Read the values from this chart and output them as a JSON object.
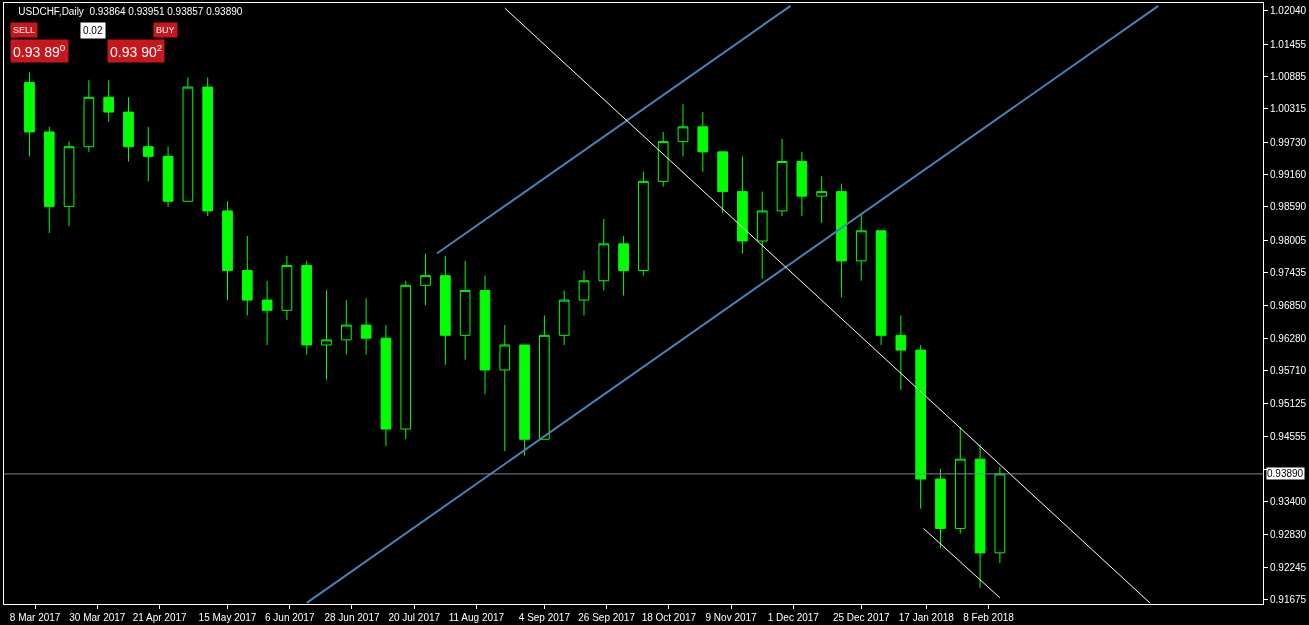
{
  "chart_data": {
    "type": "candlestick",
    "title": "USDCHF,Daily  0.93864 0.93951 0.93857 0.93890",
    "x": [
      "2017-03-06",
      "2017-03-13",
      "2017-03-20",
      "2017-03-27",
      "2017-04-03",
      "2017-04-10",
      "2017-04-17",
      "2017-04-24",
      "2017-05-01",
      "2017-05-08",
      "2017-05-15",
      "2017-05-22",
      "2017-05-29",
      "2017-06-05",
      "2017-06-12",
      "2017-06-19",
      "2017-06-26",
      "2017-07-03",
      "2017-07-10",
      "2017-07-17",
      "2017-07-24",
      "2017-07-31",
      "2017-08-07",
      "2017-08-14",
      "2017-08-21",
      "2017-08-28",
      "2017-09-04",
      "2017-09-11",
      "2017-09-18",
      "2017-09-25",
      "2017-10-02",
      "2017-10-09",
      "2017-10-16",
      "2017-10-23",
      "2017-10-30",
      "2017-11-06",
      "2017-11-13",
      "2017-11-20",
      "2017-11-27",
      "2017-12-04",
      "2017-12-11",
      "2017-12-18",
      "2017-12-25",
      "2018-01-01",
      "2018-01-08",
      "2018-01-15",
      "2018-01-22",
      "2018-01-29",
      "2018-02-05",
      "2018-02-12"
    ],
    "ohlc": [
      [
        1.0078,
        1.0096,
        0.9948,
        0.9991
      ],
      [
        0.9991,
        1.0,
        0.9813,
        0.986
      ],
      [
        0.986,
        0.9974,
        0.9825,
        0.9965
      ],
      [
        0.9965,
        1.0082,
        0.9956,
        1.0052
      ],
      [
        1.0052,
        1.0082,
        1.0009,
        1.0026
      ],
      [
        1.0026,
        1.0052,
        0.9939,
        0.9965
      ],
      [
        0.9965,
        1.0,
        0.9904,
        0.9948
      ],
      [
        0.9948,
        0.9965,
        0.9859,
        0.9869
      ],
      [
        0.9869,
        1.0087,
        0.9869,
        1.007
      ],
      [
        1.007,
        1.0087,
        0.9843,
        0.9852
      ],
      [
        0.9852,
        0.9869,
        0.9695,
        0.9747
      ],
      [
        0.9747,
        0.9808,
        0.9668,
        0.9695
      ],
      [
        0.9695,
        0.9729,
        0.9616,
        0.9677
      ],
      [
        0.9677,
        0.9773,
        0.966,
        0.9756
      ],
      [
        0.9756,
        0.9764,
        0.9599,
        0.9616
      ],
      [
        0.9616,
        0.9712,
        0.9555,
        0.9625
      ],
      [
        0.9625,
        0.9695,
        0.9599,
        0.9651
      ],
      [
        0.9651,
        0.9698,
        0.9599,
        0.9628
      ],
      [
        0.9628,
        0.9651,
        0.9438,
        0.9468
      ],
      [
        0.9468,
        0.9729,
        0.945,
        0.9721
      ],
      [
        0.9721,
        0.9777,
        0.9686,
        0.9738
      ],
      [
        0.9738,
        0.9773,
        0.9581,
        0.9633
      ],
      [
        0.9633,
        0.9764,
        0.959,
        0.9712
      ],
      [
        0.9712,
        0.9738,
        0.9529,
        0.9572
      ],
      [
        0.9572,
        0.9651,
        0.9429,
        0.9616
      ],
      [
        0.9616,
        0.9616,
        0.9421,
        0.945
      ],
      [
        0.945,
        0.9668,
        0.945,
        0.9633
      ],
      [
        0.9633,
        0.9712,
        0.9616,
        0.9695
      ],
      [
        0.9695,
        0.9747,
        0.9668,
        0.9729
      ],
      [
        0.9729,
        0.9838,
        0.9712,
        0.9794
      ],
      [
        0.9794,
        0.9808,
        0.9703,
        0.9747
      ],
      [
        0.9747,
        0.9921,
        0.9738,
        0.9904
      ],
      [
        0.9904,
        0.9991,
        0.9895,
        0.9974
      ],
      [
        0.9974,
        1.004,
        0.9948,
        1.0
      ],
      [
        1.0,
        1.0026,
        0.9921,
        0.9956
      ],
      [
        0.9956,
        0.9956,
        0.9848,
        0.9886
      ],
      [
        0.9886,
        0.9948,
        0.9777,
        0.9799
      ],
      [
        0.9799,
        0.9886,
        0.9733,
        0.9852
      ],
      [
        0.9852,
        0.9979,
        0.9843,
        0.9939
      ],
      [
        0.9939,
        0.9956,
        0.9843,
        0.9878
      ],
      [
        0.9878,
        0.9913,
        0.9831,
        0.9886
      ],
      [
        0.9886,
        0.99,
        0.97,
        0.9764
      ],
      [
        0.9764,
        0.9846,
        0.9729,
        0.9817
      ],
      [
        0.9817,
        0.9817,
        0.9616,
        0.9633
      ],
      [
        0.9633,
        0.9668,
        0.9537,
        0.9607
      ],
      [
        0.9607,
        0.9616,
        0.9328,
        0.938
      ],
      [
        0.938,
        0.9398,
        0.9258,
        0.9293
      ],
      [
        0.9293,
        0.9471,
        0.9284,
        0.9415
      ],
      [
        0.9415,
        0.9441,
        0.9188,
        0.925
      ],
      [
        0.925,
        0.9401,
        0.9232,
        0.9389
      ]
    ],
    "color": "#00ff00",
    "series": [
      {
        "type": "line",
        "color": "#4682b4",
        "x": [
          "2017-07-28",
          "2017-11-30"
        ],
        "values": [
          0.9777,
          1.0213
        ]
      },
      {
        "type": "line",
        "color": "#4682b4",
        "x": [
          "2017-06-12",
          "2018-04-09"
        ],
        "values": [
          0.9162,
          1.0213
        ]
      },
      {
        "type": "line",
        "color": "#ffffff",
        "x": [
          "2017-08-21",
          "2018-04-06"
        ],
        "values": [
          1.0209,
          0.9162
        ]
      },
      {
        "type": "line",
        "color": "#ffffff",
        "x": [
          "2018-01-16",
          "2018-02-12"
        ],
        "values": [
          0.9293,
          0.9171
        ]
      }
    ],
    "ref_lines": [
      {
        "axis": "y",
        "value": 0.9389,
        "label": "0.93890",
        "color": "#778899"
      }
    ],
    "xlim": [
      "2017-02-25",
      "2018-05-16"
    ],
    "xticks": [
      {
        "value": "2017-03-08",
        "label": "8 Mar 2017"
      },
      {
        "value": "2017-03-30",
        "label": "30 Mar 2017"
      },
      {
        "value": "2017-04-21",
        "label": "21 Apr 2017"
      },
      {
        "value": "2017-05-15",
        "label": "15 May 2017"
      },
      {
        "value": "2017-06-06",
        "label": "6 Jun 2017"
      },
      {
        "value": "2017-06-28",
        "label": "28 Jun 2017"
      },
      {
        "value": "2017-07-20",
        "label": "20 Jul 2017"
      },
      {
        "value": "2017-08-11",
        "label": "11 Aug 2017"
      },
      {
        "value": "2017-09-04",
        "label": "4 Sep 2017"
      },
      {
        "value": "2017-09-26",
        "label": "26 Sep 2017"
      },
      {
        "value": "2017-10-18",
        "label": "18 Oct 2017"
      },
      {
        "value": "2017-11-09",
        "label": "9 Nov 2017"
      },
      {
        "value": "2017-12-01",
        "label": "1 Dec 2017"
      },
      {
        "value": "2017-12-25",
        "label": "25 Dec 2017"
      },
      {
        "value": "2018-01-17",
        "label": "17 Jan 2018"
      },
      {
        "value": "2018-02-08",
        "label": "8 Feb 2018"
      }
    ],
    "ylim": [
      0.916,
      1.0218
    ],
    "yticks": [
      {
        "value": 1.0204,
        "label": "1.02040"
      },
      {
        "value": 1.01455,
        "label": "1.01455"
      },
      {
        "value": 1.00885,
        "label": "1.00885"
      },
      {
        "value": 1.00315,
        "label": "1.00315"
      },
      {
        "value": 0.9973,
        "label": "0.99730"
      },
      {
        "value": 0.9916,
        "label": "0.99160"
      },
      {
        "value": 0.9859,
        "label": "0.98590"
      },
      {
        "value": 0.98005,
        "label": "0.98005"
      },
      {
        "value": 0.97435,
        "label": "0.97435"
      },
      {
        "value": 0.9685,
        "label": "0.96850"
      },
      {
        "value": 0.9628,
        "label": "0.96280"
      },
      {
        "value": 0.9571,
        "label": "0.95710"
      },
      {
        "value": 0.95125,
        "label": "0.95125"
      },
      {
        "value": 0.94555,
        "label": "0.94555"
      },
      {
        "value": 0.9397,
        "label": null
      },
      {
        "value": 0.934,
        "label": "0.93400"
      },
      {
        "value": 0.9283,
        "label": "0.92830"
      },
      {
        "value": 0.92245,
        "label": "0.92245"
      },
      {
        "value": 0.91675,
        "label": "0.91675"
      }
    ],
    "grid": false,
    "annotations": [
      "SELL",
      "0.02",
      "BUY",
      "0.93 89$^{0}$",
      "0.93 90$^{2}$"
    ]
  }
}
